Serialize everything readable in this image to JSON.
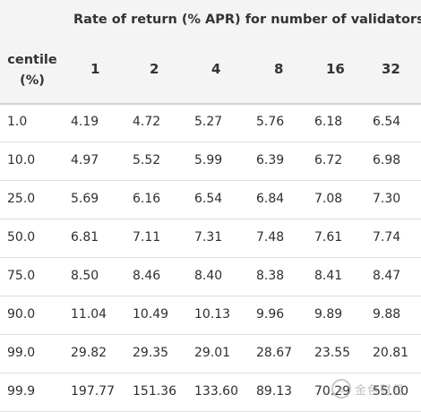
{
  "table": {
    "super_header": "Rate of return (% APR) for number of validators:",
    "centile_header_line1": "centile",
    "centile_header_line2": "(%)",
    "columns": [
      "1",
      "2",
      "4",
      "8",
      "16",
      "32"
    ],
    "rows": [
      {
        "centile": "1.0",
        "values": [
          "4.19",
          "4.72",
          "5.27",
          "5.76",
          "6.18",
          "6.54"
        ]
      },
      {
        "centile": "10.0",
        "values": [
          "4.97",
          "5.52",
          "5.99",
          "6.39",
          "6.72",
          "6.98"
        ]
      },
      {
        "centile": "25.0",
        "values": [
          "5.69",
          "6.16",
          "6.54",
          "6.84",
          "7.08",
          "7.30"
        ]
      },
      {
        "centile": "50.0",
        "values": [
          "6.81",
          "7.11",
          "7.31",
          "7.48",
          "7.61",
          "7.74"
        ]
      },
      {
        "centile": "75.0",
        "values": [
          "8.50",
          "8.46",
          "8.40",
          "8.38",
          "8.41",
          "8.47"
        ]
      },
      {
        "centile": "90.0",
        "values": [
          "11.04",
          "10.49",
          "10.13",
          "9.96",
          "9.89",
          "9.88"
        ]
      },
      {
        "centile": "99.0",
        "values": [
          "29.82",
          "29.35",
          "29.01",
          "28.67",
          "23.55",
          "20.81"
        ]
      },
      {
        "centile": "99.9",
        "values": [
          "197.77",
          "151.36",
          "133.60",
          "89.13",
          "70.29",
          "55.00"
        ]
      }
    ]
  },
  "watermark": {
    "logo_glyph": "e",
    "text": "金色财经"
  },
  "colors": {
    "header_background": "#f4f4f4",
    "row_divider": "#dedede",
    "text": "#2f2f2f"
  }
}
